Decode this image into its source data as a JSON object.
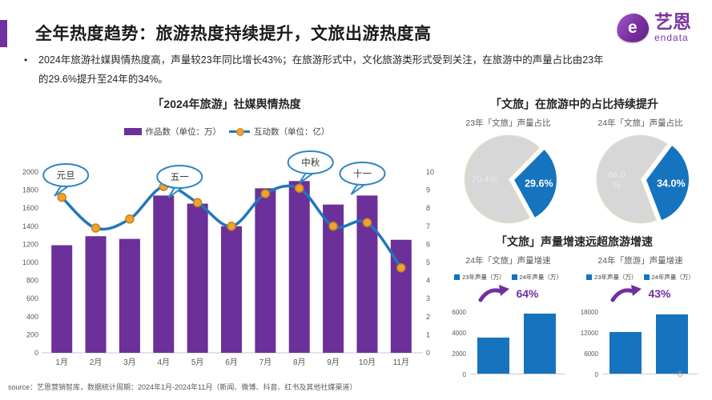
{
  "header": {
    "title": "全年热度趋势：旅游热度持续提升，文旅出游热度高",
    "bullet": "2024年旅游社媒舆情热度高，声量较23年同比增长43%；在旅游形式中，文化旅游类形式受到关注，在旅游中的声量占比由23年的29.6%提升至24年的34%。",
    "logo": {
      "brand": "艺恩",
      "sub": "endata",
      "mark": "e"
    }
  },
  "sections": {
    "pie_title": "「文旅」在旅游中的占比持续提升",
    "growth_title": "「文旅」声量增速远超旅游增速"
  },
  "chart_data": [
    {
      "id": "social-media-heat",
      "type": "bar",
      "title": "「2024年旅游」社媒舆情热度",
      "categories": [
        "1月",
        "2月",
        "3月",
        "4月",
        "5月",
        "6月",
        "7月",
        "8月",
        "9月",
        "10月",
        "11月"
      ],
      "series": [
        {
          "name": "作品数（单位：万）",
          "type": "bar",
          "axis": "left",
          "values": [
            1190,
            1290,
            1260,
            1740,
            1650,
            1400,
            1820,
            1900,
            1640,
            1740,
            1250
          ]
        },
        {
          "name": "互动数（单位：亿）",
          "type": "line",
          "axis": "right",
          "values": [
            8.6,
            6.9,
            7.4,
            9.2,
            8.3,
            7.0,
            8.8,
            9.1,
            7.0,
            7.2,
            4.7
          ]
        }
      ],
      "left_axis": {
        "min": 0,
        "max": 2000,
        "step": 200
      },
      "right_axis": {
        "min": 0,
        "max": 10,
        "step": 1
      },
      "grid": false,
      "legend_position": "top",
      "annotations": [
        {
          "label": "元旦",
          "month": "1月"
        },
        {
          "label": "五一",
          "month": "4月"
        },
        {
          "label": "中秋",
          "month": "8月"
        },
        {
          "label": "十一",
          "month": "10月"
        }
      ]
    },
    {
      "id": "pie-2023",
      "type": "pie",
      "title": "23年「文旅」声量占比",
      "slices": [
        {
          "label": "70.4%",
          "value": 70.4,
          "color": "#D7D7D7"
        },
        {
          "label": "29.6%",
          "value": 29.6,
          "color": "#1673BE",
          "exploded": true
        }
      ]
    },
    {
      "id": "pie-2024",
      "type": "pie",
      "title": "24年「文旅」声量占比",
      "slices": [
        {
          "label": "66.0%",
          "label_lines": [
            "66.0",
            "%"
          ],
          "value": 66.0,
          "color": "#D7D7D7"
        },
        {
          "label": "34.0%",
          "value": 34.0,
          "color": "#1673BE",
          "exploded": true
        }
      ]
    },
    {
      "id": "growth-wenlv",
      "type": "bar",
      "title": "24年「文旅」声量增速",
      "growth_label": "64%",
      "categories": [
        "23年声量（万）",
        "24年声量（万）"
      ],
      "values": [
        3500,
        5740
      ],
      "yticks": [
        0,
        2000,
        4000,
        6000
      ],
      "ylim": [
        0,
        6000
      ]
    },
    {
      "id": "growth-lvyou",
      "type": "bar",
      "title": "24年「旅游」声量增速",
      "growth_label": "43%",
      "categories": [
        "23年声量（万）",
        "24年声量（万）"
      ],
      "values": [
        11900,
        17000
      ],
      "yticks": [
        0,
        6000,
        12000,
        18000
      ],
      "ylim": [
        0,
        18000
      ]
    }
  ],
  "footer": {
    "source": "source：艺恩营销智库，数据统计周期：2024年1月-2024年11月（新闻、微博、抖音、红书及其他社媒渠道）",
    "page": "6"
  },
  "colors": {
    "accent_purple": "#7030A0",
    "bar_purple": "#6B3099",
    "line_blue": "#2176BD",
    "dot_orange": "#F0A330",
    "dot_stroke": "#C8821B",
    "blue": "#1673BE",
    "pie_gray": "#D7D7D7",
    "bubble_stroke": "#2E86C5"
  }
}
